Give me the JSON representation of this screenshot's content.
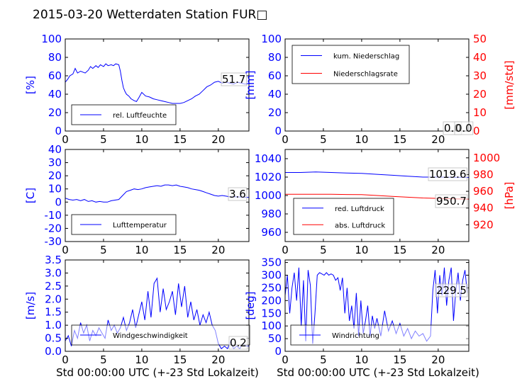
{
  "title": "2015-03-20 Wetterdaten Station FUR□",
  "chart_data": [
    {
      "id": "humidity",
      "type": "line",
      "xlim": [
        0,
        24
      ],
      "xticks": [
        0,
        5,
        10,
        15,
        20
      ],
      "ylim": [
        0,
        100
      ],
      "yticks": [
        0,
        20,
        40,
        60,
        80,
        100
      ],
      "ylabel": "[%]",
      "ylabel_color": "#0000ff",
      "tick_color": "#0000ff",
      "series": [
        {
          "name": "rel. Luftfeuchte",
          "color": "#0000ff",
          "axis": "left",
          "x": [
            0,
            0.3,
            0.6,
            1,
            1.3,
            1.6,
            2,
            2.3,
            2.6,
            3,
            3.3,
            3.6,
            4,
            4.3,
            4.6,
            5,
            5.3,
            5.6,
            6,
            6.3,
            6.6,
            7,
            7.2,
            7.4,
            7.6,
            7.8,
            8,
            8.3,
            8.6,
            9,
            9.3,
            9.6,
            10,
            10.5,
            11,
            11.5,
            12,
            12.5,
            13,
            13.5,
            14,
            14.5,
            15,
            15.5,
            16,
            16.5,
            17,
            17.5,
            18,
            18.5,
            19,
            19.5,
            20,
            20.5,
            21,
            21.5,
            22,
            22.5,
            23,
            23.5,
            24
          ],
          "y": [
            53,
            56,
            60,
            62,
            68,
            63,
            65,
            64,
            63,
            66,
            70,
            68,
            71,
            69,
            72,
            70,
            73,
            71,
            72,
            71,
            73,
            72,
            65,
            55,
            47,
            43,
            40,
            38,
            35,
            33,
            32,
            36,
            42,
            38,
            37,
            35,
            34,
            33,
            32,
            31,
            30,
            30,
            30,
            31,
            33,
            35,
            38,
            40,
            44,
            48,
            50,
            53,
            54,
            52,
            53,
            52,
            51,
            53,
            52,
            51,
            51.7
          ]
        }
      ],
      "legend": {
        "position": "lower-left"
      },
      "annotations": [
        {
          "text": "51.7",
          "value": 51.7,
          "axis": "left"
        }
      ]
    },
    {
      "id": "precip",
      "type": "line",
      "xlim": [
        0,
        24
      ],
      "xticks": [
        0,
        5,
        10,
        15,
        20
      ],
      "ylim": [
        0,
        100
      ],
      "yticks": [
        0,
        20,
        40,
        60,
        80,
        100
      ],
      "ylabel": "[mm]",
      "ylabel_color": "#0000ff",
      "tick_color": "#0000ff",
      "ylim_right": [
        0,
        50
      ],
      "yticks_right": [
        0,
        10,
        20,
        30,
        40,
        50
      ],
      "ylabel_right": "[mm/std]",
      "ylabel_right_color": "#ff0000",
      "tick_right_color": "#ff0000",
      "series": [
        {
          "name": "kum. Niederschlag",
          "color": "#0000ff",
          "axis": "left",
          "x": [
            0,
            24
          ],
          "y": [
            0,
            0
          ]
        },
        {
          "name": "Niederschlagsrate",
          "color": "#ff0000",
          "axis": "right",
          "x": [
            0,
            24
          ],
          "y": [
            0,
            0
          ]
        }
      ],
      "legend": {
        "position": "upper-left"
      },
      "annotations": [
        {
          "text": "0.0",
          "value": 0,
          "axis": "left"
        },
        {
          "text": "0.0",
          "value": 0,
          "axis": "left"
        }
      ]
    },
    {
      "id": "temperature",
      "type": "line",
      "xlim": [
        0,
        24
      ],
      "xticks": [
        0,
        5,
        10,
        15,
        20
      ],
      "ylim": [
        -30,
        40
      ],
      "yticks": [
        -30,
        -20,
        -10,
        0,
        10,
        20,
        30,
        40
      ],
      "ylabel": "[C]",
      "ylabel_color": "#0000ff",
      "tick_color": "#0000ff",
      "series": [
        {
          "name": "Lufttemperatur",
          "color": "#0000ff",
          "axis": "left",
          "x": [
            0,
            0.5,
            1,
            1.5,
            2,
            2.5,
            3,
            3.5,
            4,
            4.5,
            5,
            5.5,
            6,
            6.5,
            7,
            7.5,
            8,
            8.5,
            9,
            9.5,
            10,
            10.5,
            11,
            11.5,
            12,
            12.5,
            13,
            13.5,
            14,
            14.5,
            15,
            15.5,
            16,
            16.5,
            17,
            17.5,
            18,
            18.5,
            19,
            19.5,
            20,
            20.5,
            21,
            21.5,
            22,
            22.5,
            23,
            23.5,
            24
          ],
          "y": [
            3,
            2,
            1.5,
            2,
            1,
            2,
            0.5,
            1,
            0,
            0.5,
            0,
            0,
            1,
            1.5,
            2,
            5,
            8,
            9,
            10,
            9.5,
            10,
            11,
            11.5,
            12,
            12.5,
            12,
            13,
            13,
            12.5,
            13,
            12,
            11.5,
            11,
            10,
            9.5,
            9,
            8,
            7,
            6,
            5,
            4.5,
            5,
            4.5,
            4,
            4,
            4,
            3.8,
            3.6,
            3.6
          ]
        }
      ],
      "legend": {
        "position": "lower-left"
      },
      "annotations": [
        {
          "text": "3.6",
          "value": 3.6,
          "axis": "left"
        }
      ]
    },
    {
      "id": "pressure",
      "type": "line",
      "xlim": [
        0,
        24
      ],
      "xticks": [
        0,
        5,
        10,
        15,
        20
      ],
      "ylim": [
        950,
        1050
      ],
      "yticks": [
        960,
        980,
        1000,
        1020,
        1040
      ],
      "ylabel": "",
      "tick_color": "#0000ff",
      "ylim_right": [
        900,
        1010
      ],
      "yticks_right": [
        920,
        940,
        960,
        980,
        1000
      ],
      "ylabel_right": "[hPa]",
      "ylabel_right_color": "#ff0000",
      "tick_right_color": "#ff0000",
      "series": [
        {
          "name": "red. Luftdruck",
          "color": "#0000ff",
          "axis": "left",
          "x": [
            0,
            2,
            4,
            6,
            8,
            10,
            12,
            14,
            16,
            18,
            20,
            22,
            24
          ],
          "y": [
            1025,
            1025,
            1025.5,
            1025,
            1024.5,
            1024,
            1023,
            1022,
            1021,
            1020,
            1020,
            1019.8,
            1019.6
          ]
        },
        {
          "name": "abs. Luftdruck",
          "color": "#ff0000",
          "axis": "right",
          "x": [
            0,
            2,
            4,
            6,
            8,
            10,
            12,
            14,
            16,
            18,
            20,
            22,
            24
          ],
          "y": [
            956.5,
            956.5,
            956.5,
            956.5,
            956.2,
            956,
            955,
            954,
            953,
            952,
            951.5,
            951,
            950.7
          ]
        }
      ],
      "legend": {
        "position": "lower-left"
      },
      "annotations": [
        {
          "text": "1019.6",
          "value": 1019.6,
          "axis": "left"
        },
        {
          "text": "950.7",
          "value": 950.7,
          "axis": "right"
        }
      ]
    },
    {
      "id": "windspeed",
      "type": "line",
      "xlim": [
        0,
        24
      ],
      "xticks": [
        0,
        5,
        10,
        15,
        20
      ],
      "ylim": [
        0,
        3.5
      ],
      "yticks": [
        0.0,
        0.5,
        1.0,
        1.5,
        2.0,
        2.5,
        3.0,
        3.5
      ],
      "ylabel": "[m/s]",
      "ylabel_color": "#0000ff",
      "tick_color": "#0000ff",
      "series": [
        {
          "name": "Windgeschwindigkeit",
          "color": "#0000ff",
          "axis": "left",
          "x": [
            0,
            0.4,
            0.8,
            1.2,
            1.6,
            2,
            2.4,
            2.8,
            3.2,
            3.6,
            4,
            4.4,
            4.8,
            5.2,
            5.6,
            6,
            6.4,
            6.8,
            7.2,
            7.6,
            8,
            8.4,
            8.8,
            9.2,
            9.6,
            10,
            10.4,
            10.8,
            11.2,
            11.6,
            12,
            12.4,
            12.8,
            13.2,
            13.6,
            14,
            14.4,
            14.8,
            15.2,
            15.6,
            16,
            16.4,
            16.8,
            17.2,
            17.6,
            18,
            18.4,
            18.8,
            19.2,
            19.6,
            20,
            20.4,
            20.8,
            21.2,
            21.6,
            22,
            22.4,
            22.8,
            23.2,
            23.6,
            24
          ],
          "y": [
            0.4,
            0.6,
            0.2,
            0.8,
            0.5,
            1.1,
            0.7,
            1.0,
            0.4,
            0.8,
            0.6,
            0.9,
            0.7,
            0.5,
            1.2,
            0.8,
            1.0,
            0.7,
            0.9,
            1.3,
            0.8,
            1.1,
            1.6,
            0.9,
            1.4,
            1.9,
            1.2,
            2.3,
            1.3,
            2.6,
            2.8,
            1.5,
            2.4,
            1.6,
            1.9,
            2.3,
            1.4,
            2.6,
            1.7,
            2.5,
            1.3,
            1.9,
            1.2,
            1.6,
            1.0,
            1.4,
            1.1,
            1.5,
            1.0,
            0.8,
            0.3,
            0.1,
            0.2,
            0.1,
            0.4,
            0.1,
            0.2,
            0.1,
            0.3,
            0.2,
            0.2
          ]
        }
      ],
      "legend": {
        "position": "lower-left"
      },
      "annotations": [
        {
          "text": "0.2",
          "value": 0.2,
          "axis": "left"
        }
      ]
    },
    {
      "id": "winddir",
      "type": "line",
      "xlim": [
        0,
        24
      ],
      "xticks": [
        0,
        5,
        10,
        15,
        20
      ],
      "ylim": [
        0,
        360
      ],
      "yticks": [
        0,
        50,
        100,
        150,
        200,
        250,
        300,
        350
      ],
      "ylabel": "[deg]",
      "ylabel_color": "#0000ff",
      "tick_color": "#0000ff",
      "series": [
        {
          "name": "Windrichtung",
          "color": "#0000ff",
          "axis": "left",
          "x": [
            0,
            0.3,
            0.6,
            0.9,
            1.2,
            1.5,
            1.8,
            2.1,
            2.4,
            2.7,
            3,
            3.3,
            3.6,
            3.9,
            4.2,
            4.5,
            4.8,
            5.1,
            5.4,
            5.7,
            6,
            6.3,
            6.6,
            6.9,
            7.2,
            7.5,
            7.8,
            8.1,
            8.4,
            8.7,
            9,
            9.3,
            9.6,
            9.9,
            10.2,
            10.5,
            10.8,
            11.1,
            11.4,
            11.7,
            12,
            12.5,
            13,
            13.5,
            14,
            14.5,
            15,
            15.5,
            16,
            16.5,
            17,
            17.5,
            18,
            18.5,
            19,
            19.3,
            19.6,
            19.9,
            20.2,
            20.5,
            20.8,
            21.1,
            21.4,
            21.7,
            22,
            22.3,
            22.6,
            22.9,
            23.2,
            23.5,
            23.8
          ],
          "y": [
            220,
            300,
            150,
            250,
            310,
            200,
            330,
            100,
            280,
            40,
            320,
            260,
            30,
            150,
            300,
            310,
            305,
            300,
            310,
            300,
            305,
            300,
            280,
            290,
            240,
            290,
            150,
            250,
            120,
            180,
            90,
            230,
            60,
            200,
            70,
            120,
            180,
            60,
            140,
            90,
            130,
            60,
            160,
            80,
            120,
            70,
            110,
            60,
            90,
            50,
            80,
            60,
            70,
            40,
            60,
            240,
            320,
            150,
            300,
            220,
            330,
            180,
            280,
            330,
            120,
            240,
            310,
            200,
            280,
            320,
            230
          ]
        }
      ],
      "legend": {
        "position": "lower-left"
      },
      "annotations": [
        {
          "text": "229.5",
          "value": 229.5,
          "axis": "left"
        }
      ]
    }
  ],
  "xlabel_bottom": "Std 00:00:00 UTC (+-23 Std Lokalzeit)"
}
